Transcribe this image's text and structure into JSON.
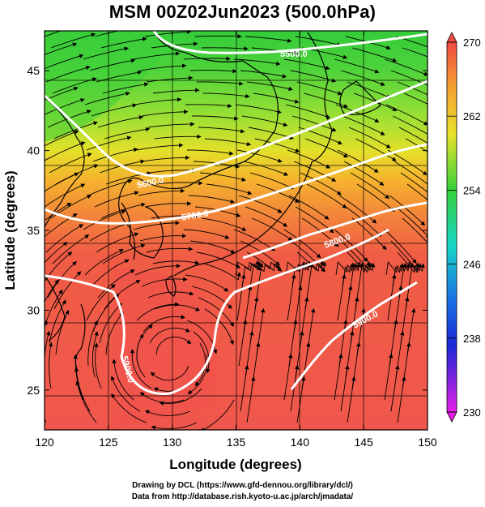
{
  "title": "MSM 00Z02Jun2023 (500.0hPa)",
  "xlabel": "Longitude (degrees)",
  "ylabel": "Latitude  (degrees)",
  "credit_line1": "Drawing by DCL (https://www.gfd-dennou.org/library/dcl/)",
  "credit_line2": "Data from http://database.rish.kyoto-u.ac.jp/arch/jmadata/",
  "x_ticks": [
    "120",
    "125",
    "130",
    "135",
    "140",
    "145",
    "150"
  ],
  "y_ticks": [
    "25",
    "30",
    "35",
    "40",
    "45"
  ],
  "colorbar_ticks": [
    "270",
    "262",
    "254",
    "246",
    "238",
    "230"
  ],
  "contour_labels": [
    "5500.0",
    "5600.0",
    "5700.0",
    "5800.0",
    "5900.0",
    "5900.0"
  ],
  "colors": {
    "warm": "#f0544f",
    "mid": "#f59a36",
    "yellow": "#e6e22a",
    "green": "#3ad23c",
    "cyan": "#18d6c8",
    "blue": "#1a3fd6",
    "magenta": "#e61ee6"
  },
  "chart_data": {
    "type": "heatmap",
    "variable": "500 hPa temperature (K) with geopotential height contours and wind streamlines",
    "xlim": [
      120,
      150
    ],
    "ylim": [
      22.5,
      47.5
    ],
    "colorbar_range": [
      230,
      270
    ],
    "contour_levels": [
      5500,
      5600,
      5700,
      5800,
      5900
    ]
  }
}
